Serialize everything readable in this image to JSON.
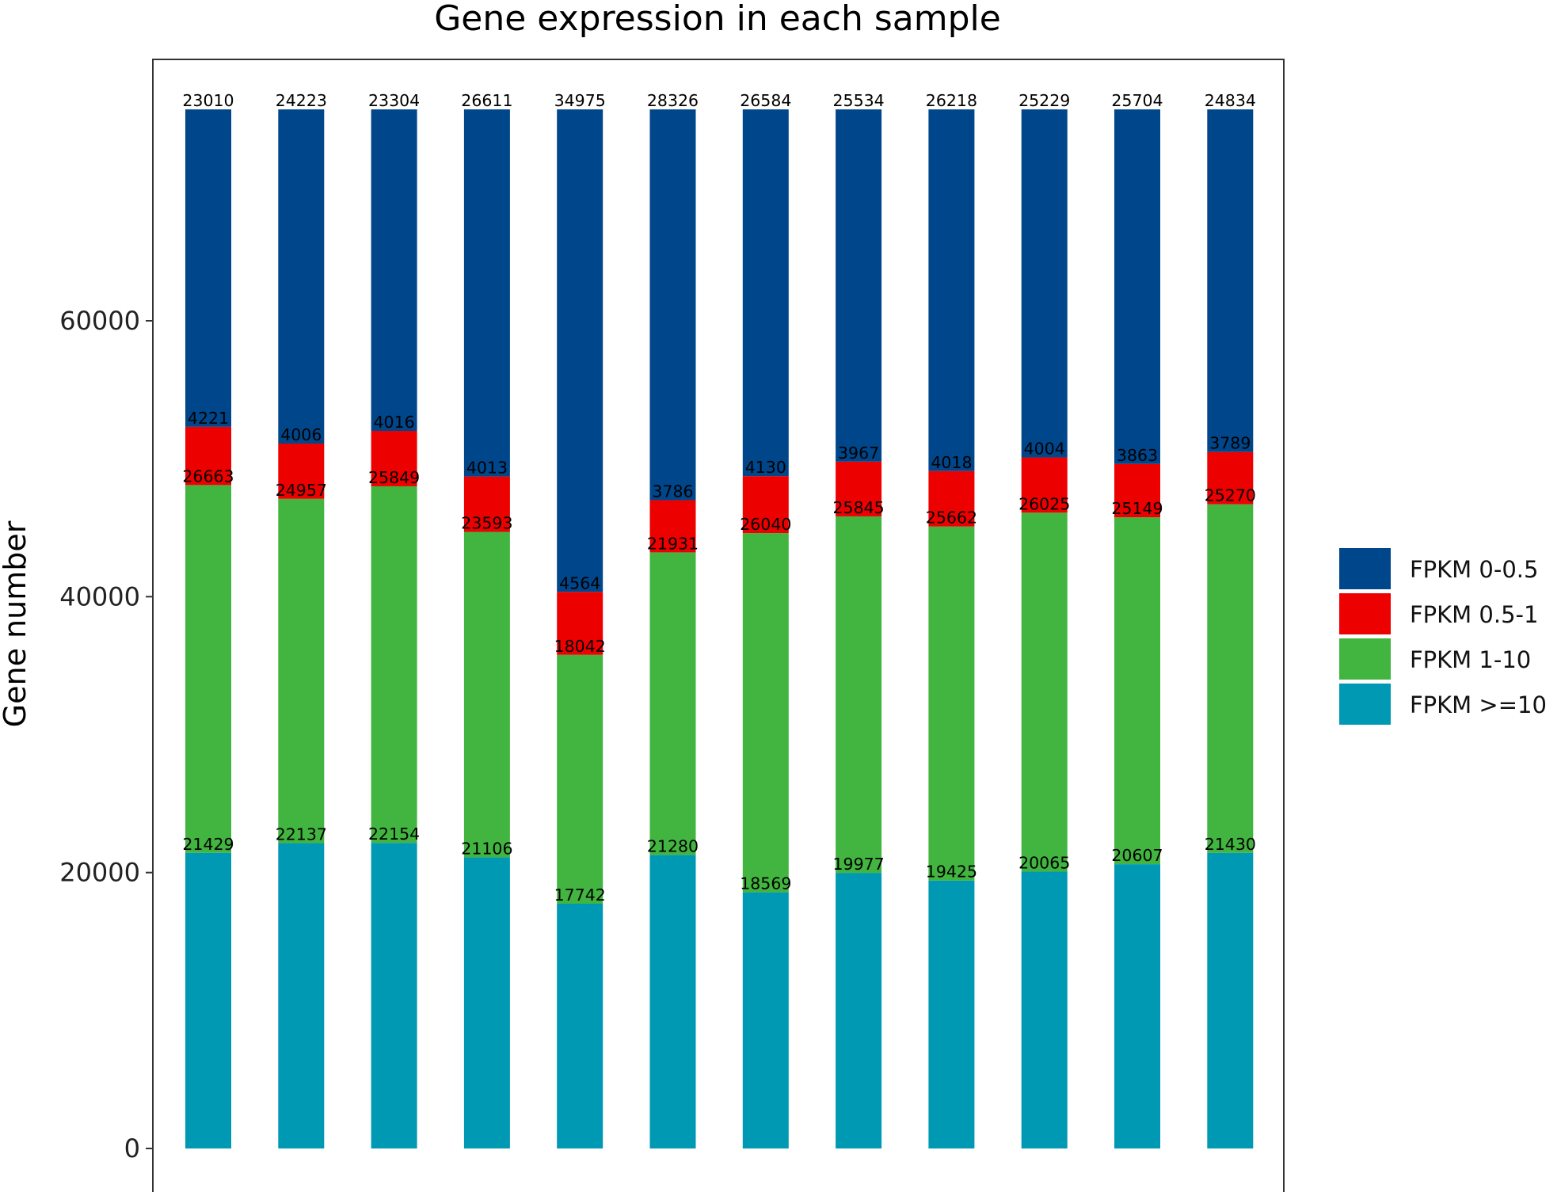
{
  "chart_data": {
    "type": "bar",
    "stacked": true,
    "title": "Gene expression in each sample",
    "xlabel": "",
    "ylabel": "Gene number",
    "ylim": [
      0,
      75500
    ],
    "yticks": [
      "0",
      "20000",
      "40000",
      "60000"
    ],
    "grid": false,
    "legend_position": "right",
    "series": [
      {
        "name": "FPKM >=10",
        "color": "#0099B4",
        "values": [
          21429,
          22137,
          22154,
          21106,
          17742,
          21280,
          18569,
          19977,
          19425,
          20065,
          20607,
          21430
        ]
      },
      {
        "name": "FPKM 1-10",
        "color": "#42B540",
        "values": [
          26663,
          24957,
          25849,
          23593,
          18042,
          21931,
          26040,
          25845,
          25662,
          26025,
          25149,
          25270
        ]
      },
      {
        "name": "FPKM 0.5-1",
        "color": "#ED0000",
        "values": [
          4221,
          4006,
          4016,
          4013,
          4564,
          3786,
          4130,
          3967,
          4018,
          4004,
          3863,
          3789
        ]
      },
      {
        "name": "FPKM 0-0.5",
        "color": "#00468B",
        "values": [
          23010,
          24223,
          23304,
          26611,
          34975,
          28326,
          26584,
          25534,
          26218,
          25229,
          25704,
          24834
        ]
      }
    ],
    "legend_order": [
      "FPKM 0-0.5",
      "FPKM 0.5-1",
      "FPKM 1-10",
      "FPKM >=10"
    ]
  }
}
